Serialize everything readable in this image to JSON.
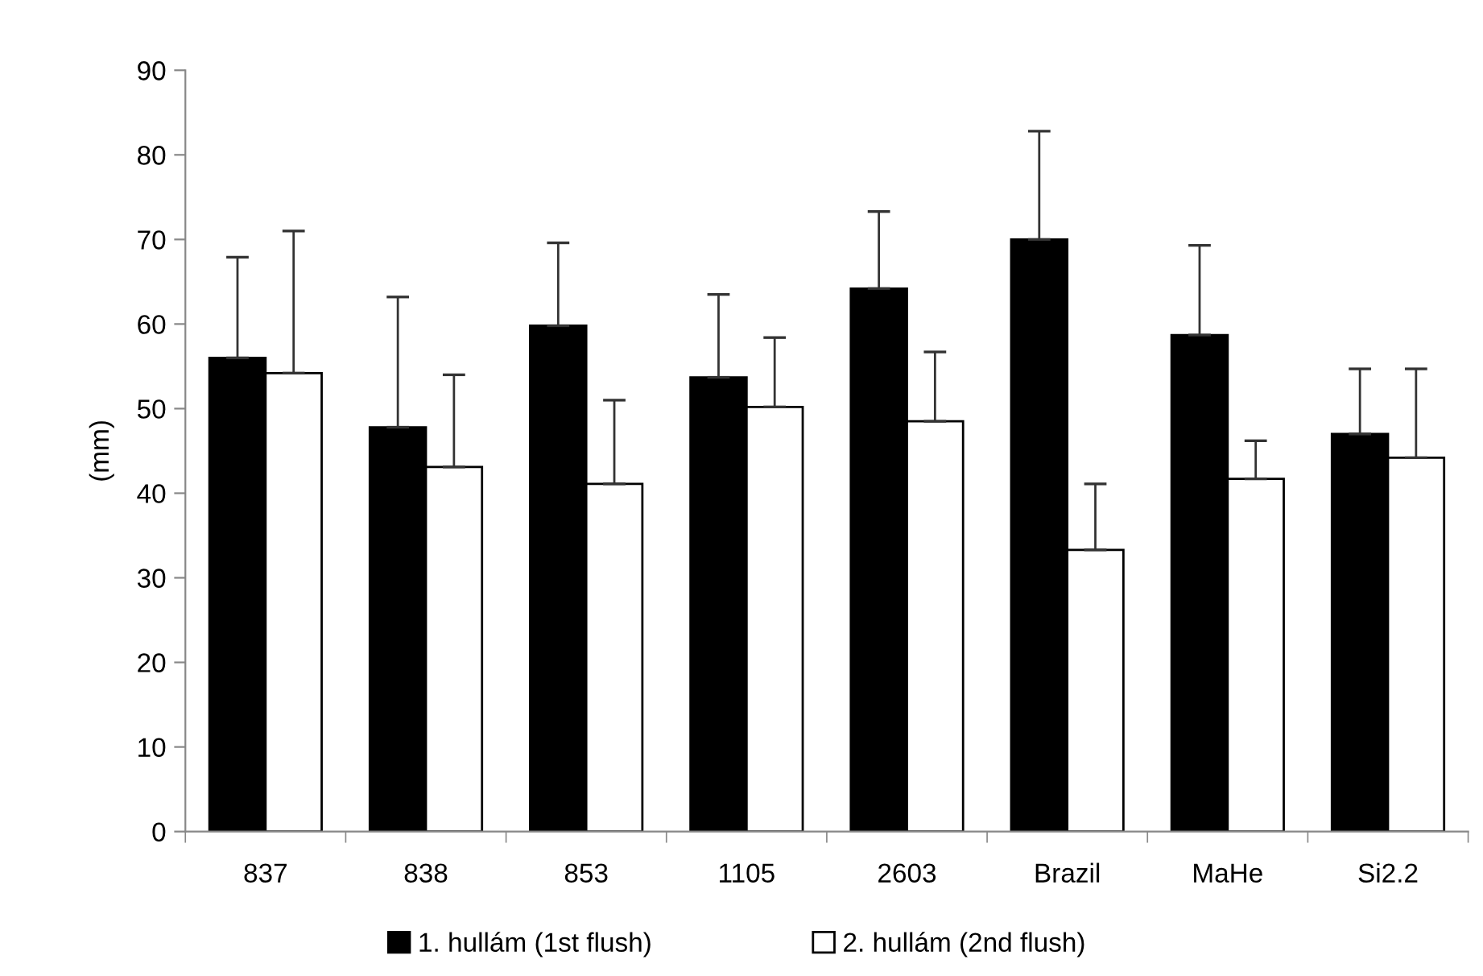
{
  "chart_data": {
    "type": "bar",
    "ylabel": "(mm)",
    "categories": [
      "837",
      "838",
      "853",
      "1105",
      "2603",
      "Brazil",
      "MaHe",
      "Si2.2"
    ],
    "series": [
      {
        "name": "1. hullám (1st flush)",
        "color": "#000000",
        "values": [
          56,
          47.8,
          59.8,
          53.7,
          64.2,
          70,
          58.7,
          47
        ],
        "errors": [
          [
            56,
            67.9
          ],
          [
            47.8,
            63.2
          ],
          [
            59.8,
            69.6
          ],
          [
            53.7,
            63.5
          ],
          [
            64.2,
            73.3
          ],
          [
            70,
            82.8
          ],
          [
            58.7,
            69.3
          ],
          [
            47,
            54.7
          ]
        ]
      },
      {
        "name": "2. hullám (2nd flush)",
        "color": "#ffffff",
        "values": [
          54.2,
          43.1,
          41.1,
          50.2,
          48.5,
          33.3,
          41.7,
          44.2
        ],
        "errors": [
          [
            54.2,
            71
          ],
          [
            43.1,
            54
          ],
          [
            41.1,
            51
          ],
          [
            50.2,
            58.4
          ],
          [
            48.5,
            56.7
          ],
          [
            33.3,
            41.1
          ],
          [
            41.7,
            46.2
          ],
          [
            44.2,
            54.7
          ]
        ]
      }
    ],
    "ylim": [
      0,
      90
    ],
    "yticks": [
      0,
      10,
      20,
      30,
      40,
      50,
      60,
      70,
      80,
      90
    ],
    "grid": false,
    "legend": "bottom"
  }
}
